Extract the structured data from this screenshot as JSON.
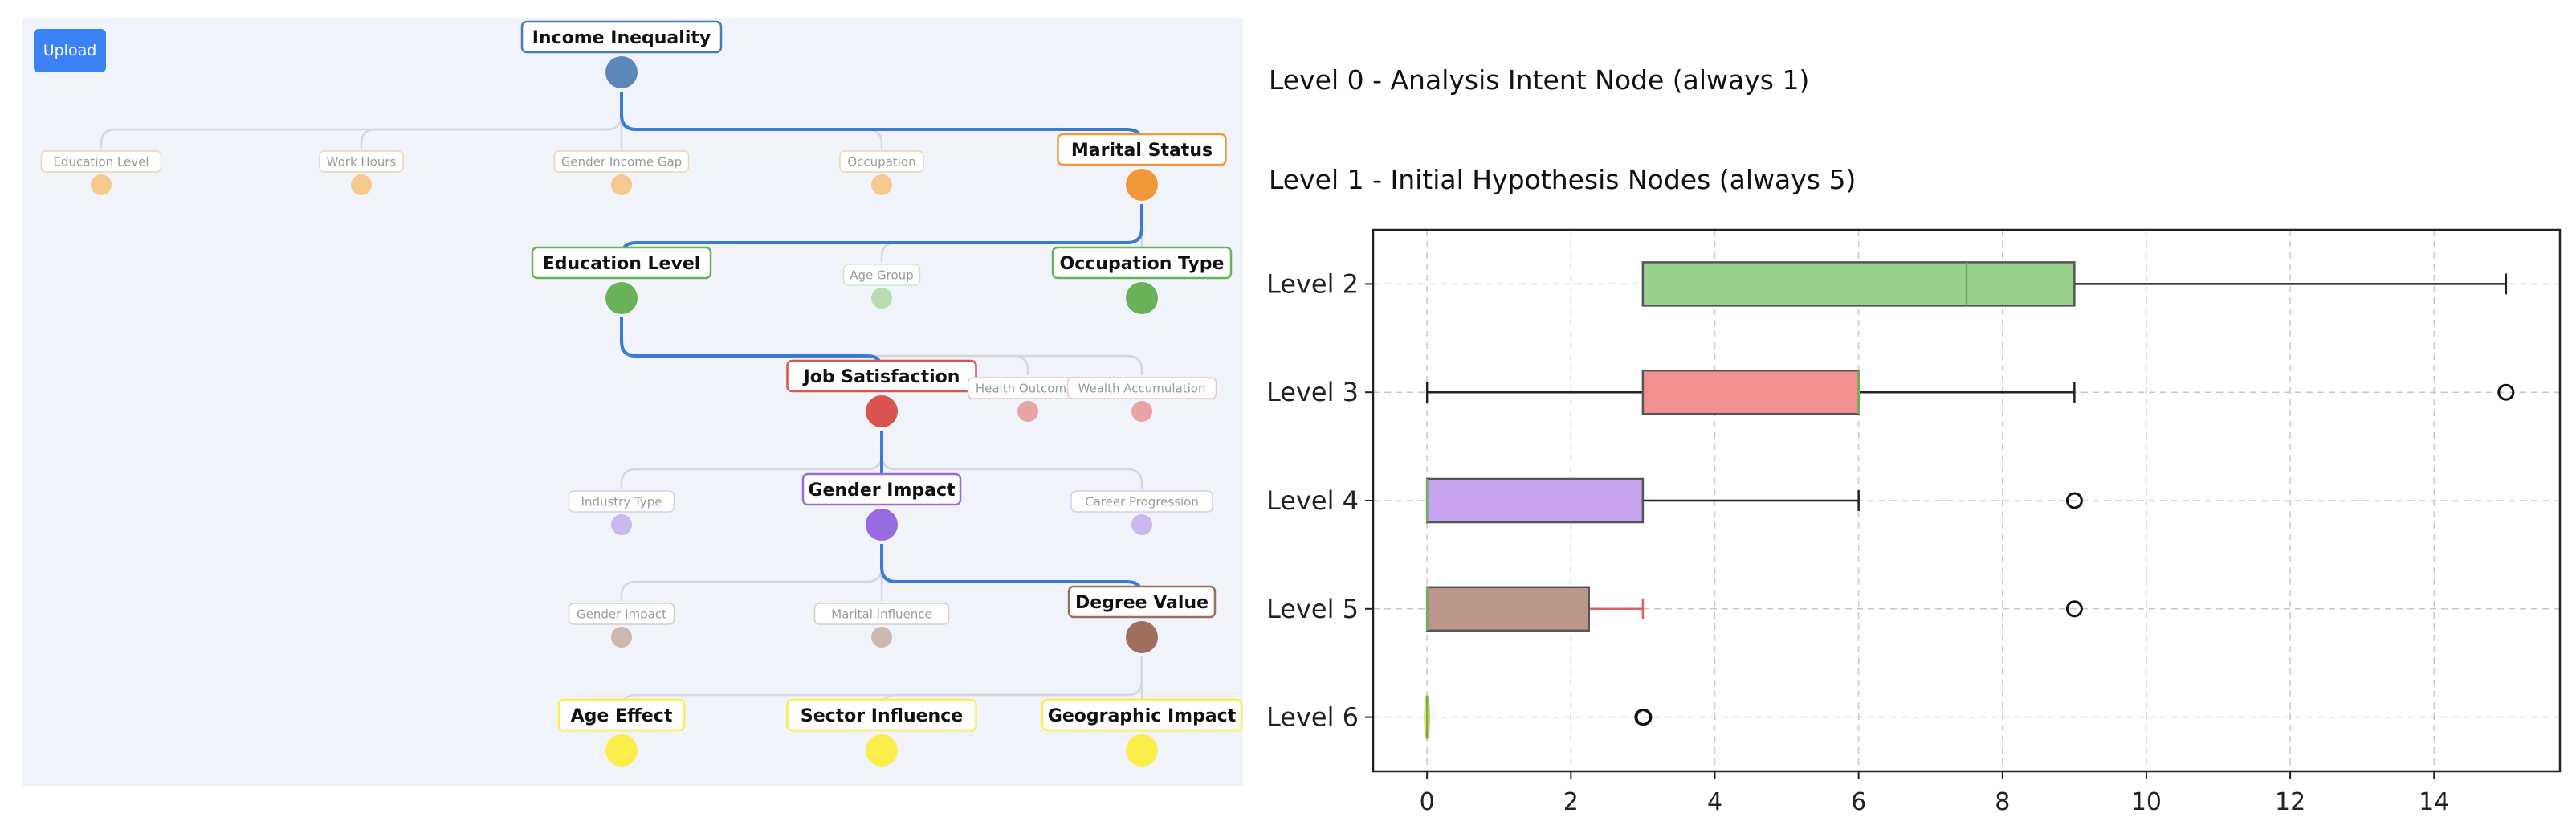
{
  "toolbar": {
    "upload_label": "Upload"
  },
  "tree": {
    "nodes": [
      {
        "id": "n0",
        "label": "Income Inequality",
        "level": 0,
        "style": "active",
        "color": "#5b87b9",
        "border": "#4a7ab0"
      },
      {
        "id": "n1a",
        "label": "Education Level",
        "level": 1,
        "style": "faded",
        "color": "#f4c98e",
        "border": "#eed3b0"
      },
      {
        "id": "n1b",
        "label": "Work Hours",
        "level": 1,
        "style": "faded",
        "color": "#f4c98e",
        "border": "#eed3b0"
      },
      {
        "id": "n1c",
        "label": "Gender Income Gap",
        "level": 1,
        "style": "faded",
        "color": "#f4c98e",
        "border": "#eed3b0"
      },
      {
        "id": "n1d",
        "label": "Occupation",
        "level": 1,
        "style": "faded",
        "color": "#f4c98e",
        "border": "#eed3b0"
      },
      {
        "id": "n1e",
        "label": "Marital Status",
        "level": 1,
        "style": "active",
        "color": "#f0993a",
        "border": "#f0993a"
      },
      {
        "id": "n2a",
        "label": "Education Level",
        "level": 2,
        "style": "active",
        "color": "#6ab25a",
        "border": "#6ab25a"
      },
      {
        "id": "n2b",
        "label": "Age Group",
        "level": 2,
        "style": "faded",
        "color": "#b8dcb0",
        "border": "#cfe5ca"
      },
      {
        "id": "n2c",
        "label": "Occupation Type",
        "level": 2,
        "style": "active",
        "color": "#6ab25a",
        "border": "#6ab25a"
      },
      {
        "id": "n3a",
        "label": "Job Satisfaction",
        "level": 3,
        "style": "active",
        "color": "#d9534f",
        "border": "#d9534f"
      },
      {
        "id": "n3b",
        "label": "Health Outcomes",
        "level": 3,
        "style": "faded",
        "color": "#e7a4a4",
        "border": "#ebc4c4"
      },
      {
        "id": "n3c",
        "label": "Wealth Accumulation",
        "level": 3,
        "style": "faded",
        "color": "#e7a4a4",
        "border": "#ebc4c4"
      },
      {
        "id": "n4a",
        "label": "Industry Type",
        "level": 4,
        "style": "faded",
        "color": "#cbb8ee",
        "border": "#d8ccf2"
      },
      {
        "id": "n4b",
        "label": "Gender Impact",
        "level": 4,
        "style": "active",
        "color": "#9a6be0",
        "border": "#9a6be0"
      },
      {
        "id": "n4c",
        "label": "Career Progression",
        "level": 4,
        "style": "faded",
        "color": "#cbb8ee",
        "border": "#d8ccf2"
      },
      {
        "id": "n5a",
        "label": "Gender Impact",
        "level": 5,
        "style": "faded",
        "color": "#cdb8b0",
        "border": "#d8ccc6"
      },
      {
        "id": "n5b",
        "label": "Marital Influence",
        "level": 5,
        "style": "faded",
        "color": "#cdb8b0",
        "border": "#d8ccc6"
      },
      {
        "id": "n5c",
        "label": "Degree Value",
        "level": 5,
        "style": "active",
        "color": "#a06e5e",
        "border": "#a06e5e"
      },
      {
        "id": "n6a",
        "label": "Age Effect",
        "level": 6,
        "style": "active",
        "color": "#fbee4a",
        "border": "#fbee4a"
      },
      {
        "id": "n6b",
        "label": "Sector Influence",
        "level": 6,
        "style": "active",
        "color": "#fbee4a",
        "border": "#fbee4a"
      },
      {
        "id": "n6c",
        "label": "Geographic Impact",
        "level": 6,
        "style": "active",
        "color": "#fbee4a",
        "border": "#fbee4a"
      }
    ],
    "edges": [
      {
        "from": "n0",
        "to": "n1a",
        "active": false
      },
      {
        "from": "n0",
        "to": "n1b",
        "active": false
      },
      {
        "from": "n0",
        "to": "n1c",
        "active": false
      },
      {
        "from": "n0",
        "to": "n1d",
        "active": false
      },
      {
        "from": "n0",
        "to": "n1e",
        "active": true
      },
      {
        "from": "n1e",
        "to": "n2a",
        "active": true
      },
      {
        "from": "n1e",
        "to": "n2b",
        "active": false
      },
      {
        "from": "n1e",
        "to": "n2c",
        "active": false
      },
      {
        "from": "n2a",
        "to": "n3a",
        "active": true
      },
      {
        "from": "n2a",
        "to": "n3b",
        "active": false
      },
      {
        "from": "n2a",
        "to": "n3c",
        "active": false
      },
      {
        "from": "n3a",
        "to": "n4a",
        "active": false
      },
      {
        "from": "n3a",
        "to": "n4b",
        "active": true
      },
      {
        "from": "n3a",
        "to": "n4c",
        "active": false
      },
      {
        "from": "n4b",
        "to": "n5a",
        "active": false
      },
      {
        "from": "n4b",
        "to": "n5b",
        "active": false
      },
      {
        "from": "n4b",
        "to": "n5c",
        "active": true
      },
      {
        "from": "n5c",
        "to": "n6a",
        "active": false
      },
      {
        "from": "n5c",
        "to": "n6b",
        "active": false
      },
      {
        "from": "n5c",
        "to": "n6c",
        "active": false
      }
    ],
    "colors": {
      "active_edge": "#3a7bd5",
      "faded_edge": "#d4d8de",
      "panel_bg": "#f0f4fa"
    }
  },
  "headings": {
    "level0": "Level 0 - Analysis Intent Node (always 1)",
    "level1": "Level 1 - Initial Hypothesis Nodes (always 5)"
  },
  "chart_data": {
    "type": "boxplot",
    "orientation": "horizontal",
    "xlim": [
      -0.75,
      15.75
    ],
    "xticks": [
      0,
      2,
      4,
      6,
      8,
      10,
      12,
      14
    ],
    "grid": true,
    "series": [
      {
        "name": "Level 2",
        "whisker_low": 3,
        "q1": 3,
        "median": 7.5,
        "q3": 9,
        "whisker_high": 15,
        "outliers": [],
        "color": "#98d18c"
      },
      {
        "name": "Level 3",
        "whisker_low": 0,
        "q1": 3,
        "median": 6,
        "q3": 6,
        "whisker_high": 9,
        "outliers": [
          15
        ],
        "color": "#f28f8f"
      },
      {
        "name": "Level 4",
        "whisker_low": 0,
        "q1": 0,
        "median": 0,
        "q3": 3,
        "whisker_high": 6,
        "outliers": [
          9
        ],
        "color": "#c7a3f0"
      },
      {
        "name": "Level 5",
        "whisker_low": 0,
        "q1": 0,
        "median": 0,
        "q3": 2.25,
        "whisker_high": 3,
        "outliers": [
          9
        ],
        "color": "#bd968b"
      },
      {
        "name": "Level 6",
        "whisker_low": 0,
        "q1": 0,
        "median": 0,
        "q3": 0,
        "whisker_high": 0,
        "outliers": [
          3,
          3
        ],
        "color": "#f5e56b"
      }
    ]
  }
}
